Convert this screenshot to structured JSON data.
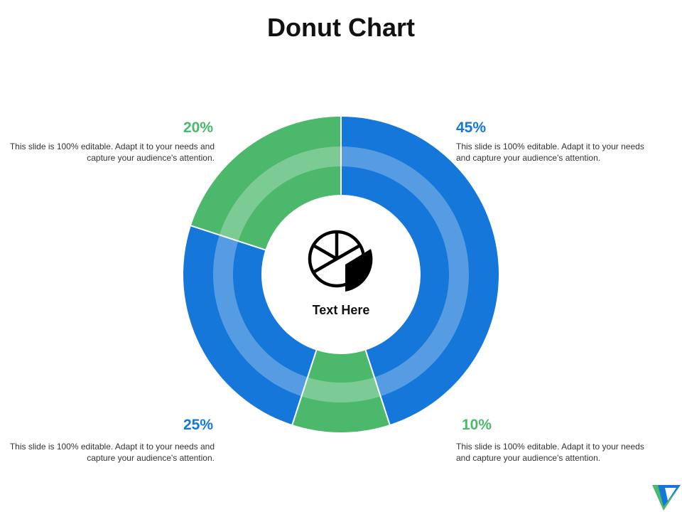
{
  "slide": {
    "title": "Donut Chart",
    "center_label": "Text Here",
    "colors": {
      "blue": "#1577d9",
      "green": "#4cb86b"
    }
  },
  "callouts": [
    {
      "id": "tl",
      "value": "20%",
      "text": "This slide is 100% editable. Adapt it to your needs and capture your audience's attention.",
      "color": "#4cb86b"
    },
    {
      "id": "tr",
      "value": "45%",
      "text": "This slide is 100% editable. Adapt it to your needs and capture your audience's attention.",
      "color": "#1577d9"
    },
    {
      "id": "bl",
      "value": "25%",
      "text": "This slide is 100% editable. Adapt it to your needs and capture your audience's attention.",
      "color": "#1577d9"
    },
    {
      "id": "br",
      "value": "10%",
      "text": "This slide is 100% editable. Adapt it to your needs and capture your audience's attention.",
      "color": "#4cb86b"
    }
  ],
  "chart_data": {
    "type": "pie",
    "title": "Donut Chart",
    "donut": true,
    "legend": "none",
    "categories": [
      "",
      "",
      "",
      ""
    ],
    "values": [
      45,
      10,
      25,
      20
    ],
    "colors": [
      "#1577d9",
      "#4cb86b",
      "#1577d9",
      "#4cb86b"
    ],
    "data_labels": [
      "45%",
      "10%",
      "25%",
      "20%"
    ]
  }
}
